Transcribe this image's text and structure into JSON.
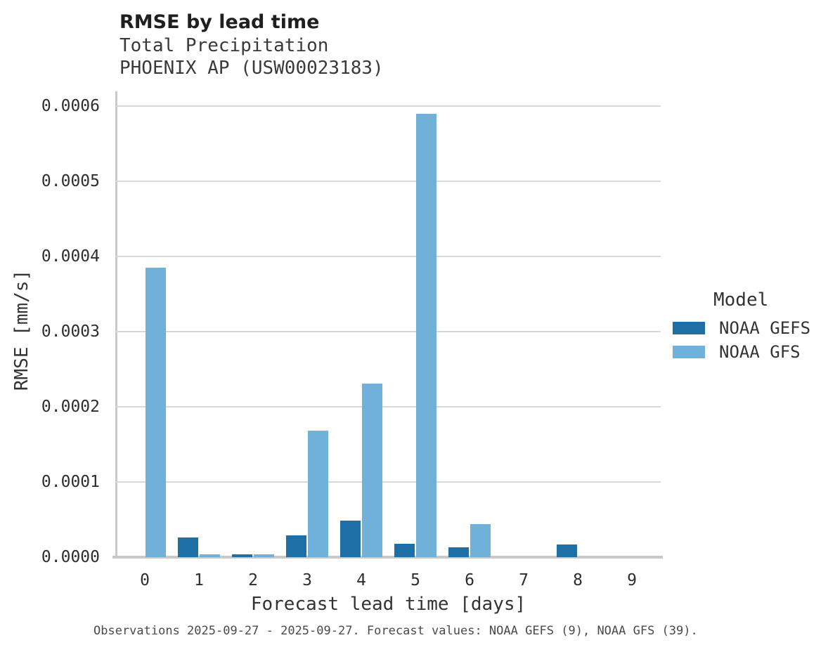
{
  "title": "RMSE by lead time",
  "subtitle_line1": "Total Precipitation",
  "subtitle_line2": "PHOENIX AP (USW00023183)",
  "caption": "Observations 2025-09-27 - 2025-09-27. Forecast values: NOAA GEFS (9), NOAA GFS (39).",
  "colors": {
    "gefs_dark_blue": "#1d6fa5",
    "gfs_light_blue": "#70b1da",
    "gridline_gray": "#d8d8d8",
    "axis_gray": "#c9c9c9"
  },
  "legend": {
    "title": "Model",
    "entries": [
      {
        "label": "NOAA GEFS",
        "color": "#1d6fa5"
      },
      {
        "label": "NOAA GFS",
        "color": "#70b1da"
      }
    ]
  },
  "chart_data": {
    "type": "bar",
    "title": "RMSE by lead time",
    "subtitle": "Total Precipitation — PHOENIX AP (USW00023183)",
    "xlabel": "Forecast lead time [days]",
    "ylabel": "RMSE [mm/s]",
    "categories": [
      "0",
      "1",
      "2",
      "3",
      "4",
      "5",
      "6",
      "7",
      "8",
      "9"
    ],
    "series": [
      {
        "name": "NOAA GEFS",
        "color": "#1d6fa5",
        "values": [
          0,
          2.6e-05,
          4e-06,
          2.9e-05,
          4.9e-05,
          1.8e-05,
          1.3e-05,
          0,
          1.7e-05,
          0
        ]
      },
      {
        "name": "NOAA GFS",
        "color": "#70b1da",
        "values": [
          0.000385,
          4e-06,
          4e-06,
          0.000168,
          0.000231,
          0.00059,
          4.4e-05,
          0,
          0,
          0
        ]
      }
    ],
    "ylim": [
      0,
      0.00062
    ],
    "yticks": [
      0,
      0.0001,
      0.0002,
      0.0003,
      0.0004,
      0.0005,
      0.0006
    ],
    "ytick_format": "4-decimals",
    "grid": true,
    "legend_position": "right-center"
  }
}
